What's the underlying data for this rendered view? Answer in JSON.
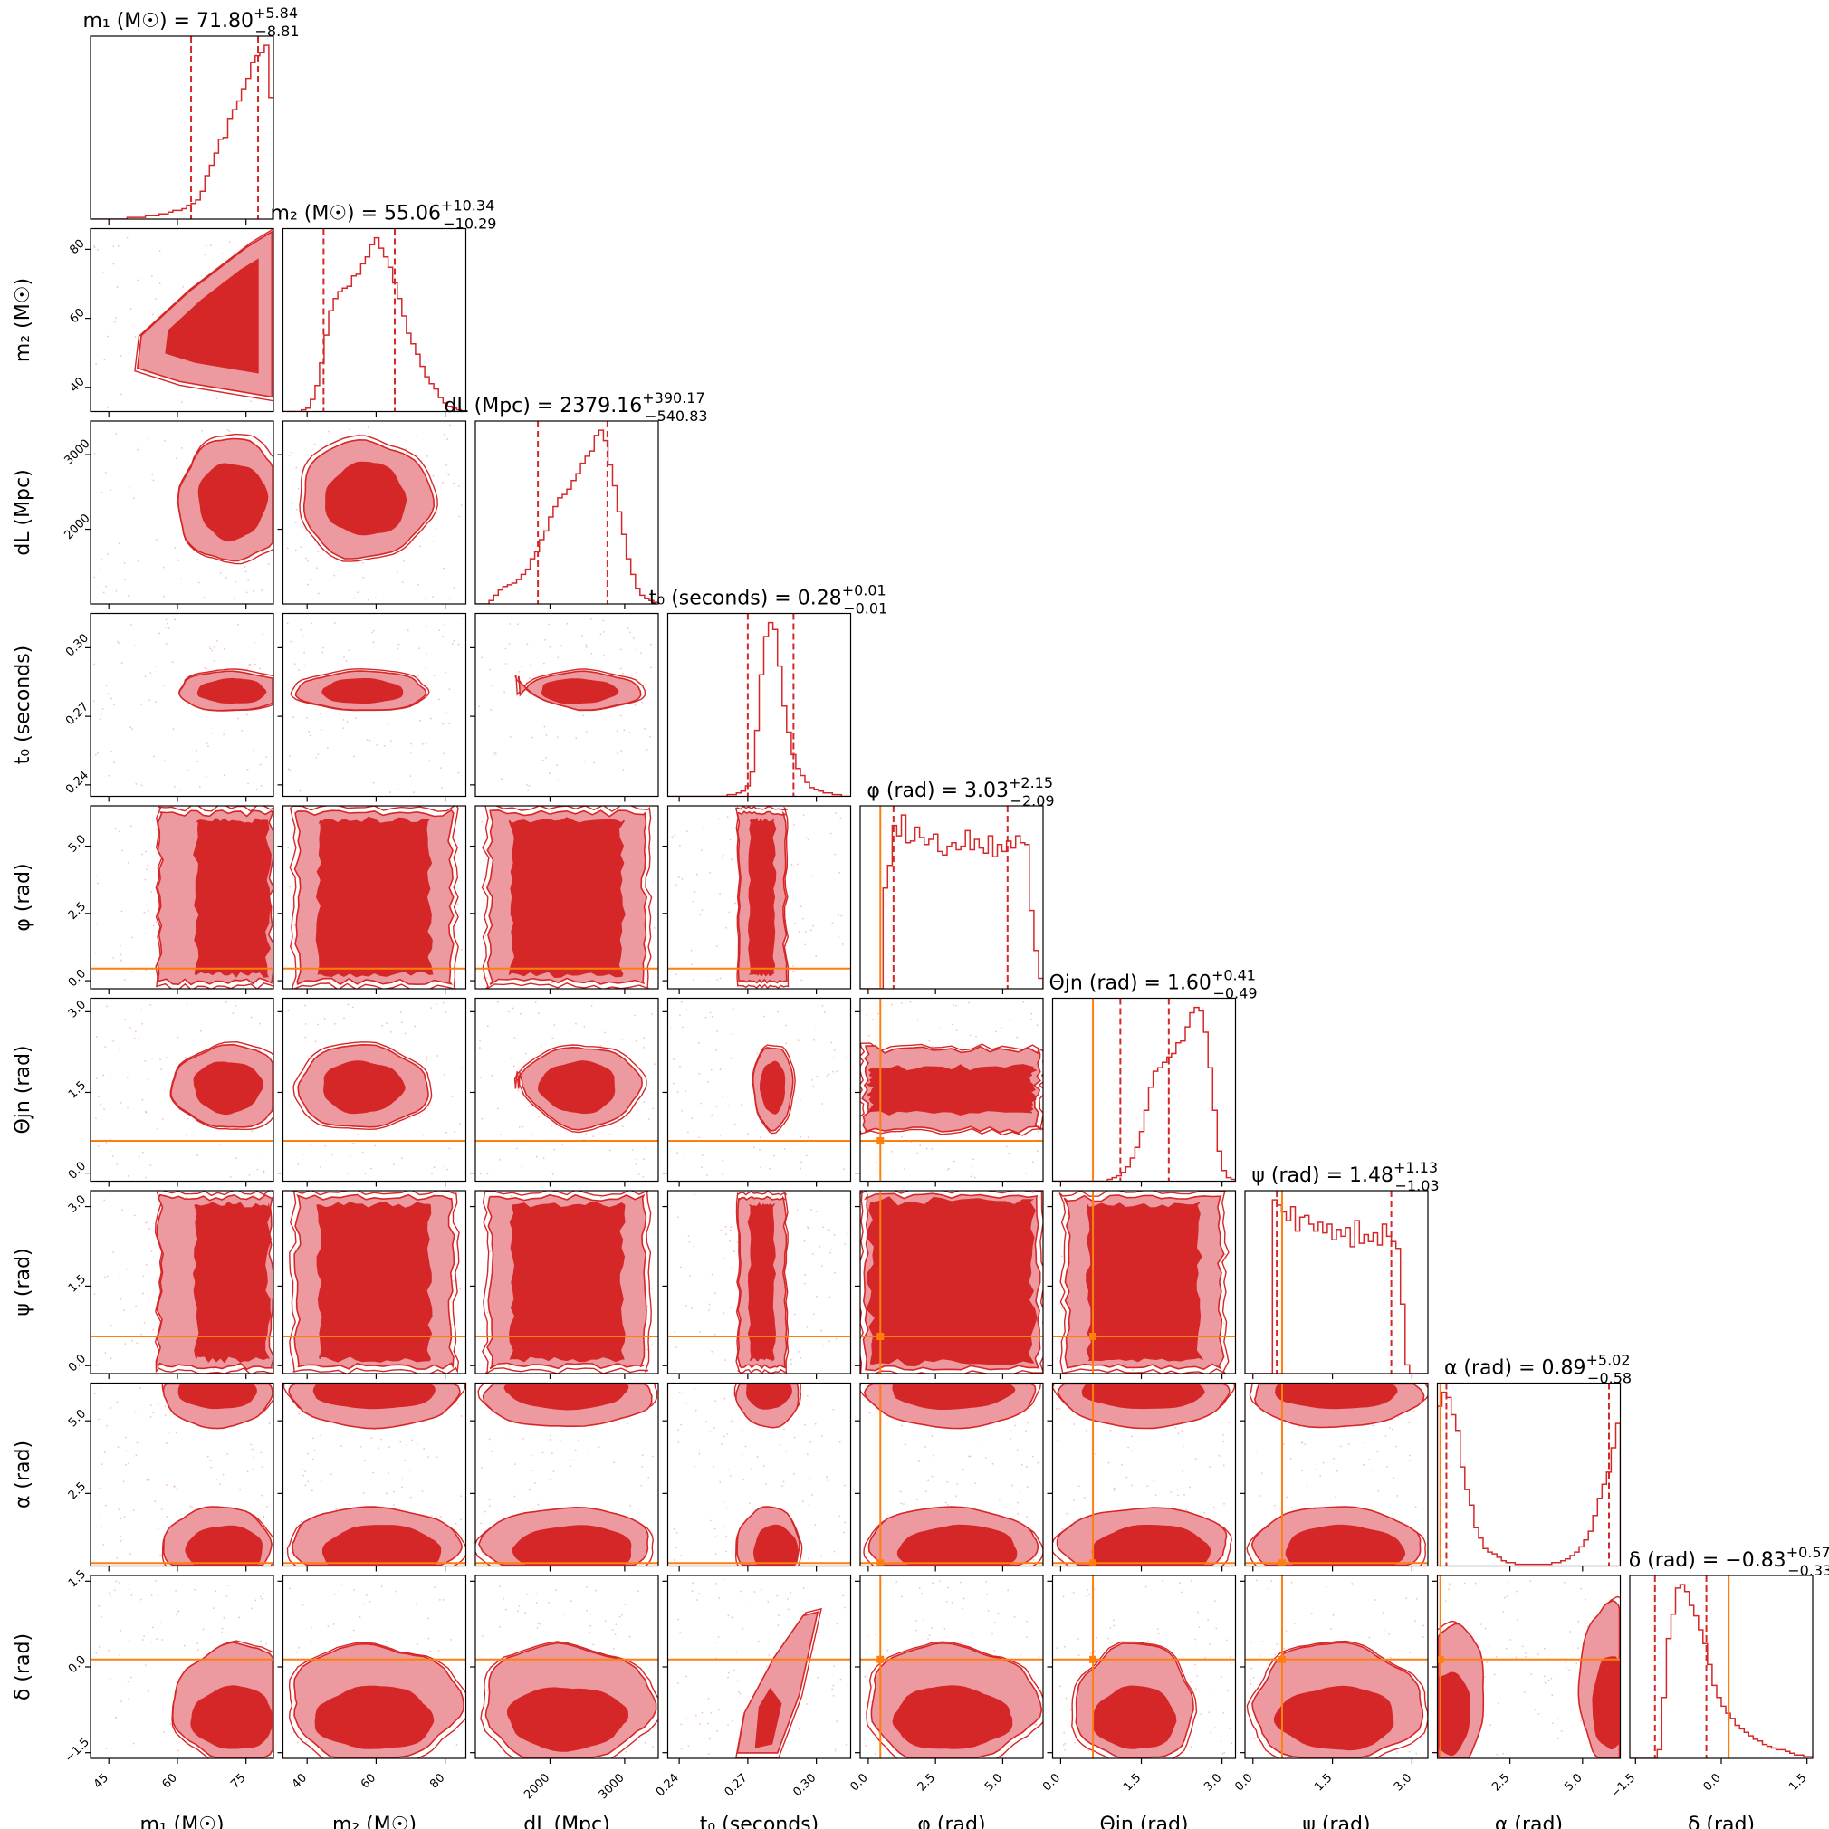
{
  "chart_data": {
    "type": "corner",
    "colors": {
      "posterior": "#d62728",
      "posterior_light": "#ec9aa0",
      "injection": "#ff7f0e"
    },
    "parameters": [
      {
        "key": "m1",
        "label": "m₁ (M☉)",
        "range": [
          41,
          81
        ],
        "ticks": [
          45,
          60,
          75
        ],
        "median": 71.8,
        "lo": 62.99,
        "hi": 77.64,
        "truth": null,
        "title": {
          "name": "m₁ (M☉) = 71.80",
          "plus": "+5.84",
          "minus": "−8.81"
        }
      },
      {
        "key": "m2",
        "label": "m₂ (M☉)",
        "range": [
          33,
          86
        ],
        "ticks": [
          40,
          60,
          80
        ],
        "median": 55.06,
        "lo": 44.77,
        "hi": 65.4,
        "truth": null,
        "title": {
          "name": "m₂ (M☉) = 55.06",
          "plus": "+10.34",
          "minus": "−10.29"
        }
      },
      {
        "key": "dL",
        "label": "dL (Mpc)",
        "range": [
          1000,
          3450
        ],
        "ticks": [
          2000,
          3000
        ],
        "median": 2379.16,
        "lo": 1838.33,
        "hi": 2769.33,
        "truth": null,
        "title": {
          "name": "dL (Mpc) = 2379.16",
          "plus": "+390.17",
          "minus": "−540.83"
        }
      },
      {
        "key": "t0",
        "label": "t₀ (seconds)",
        "range": [
          0.235,
          0.315
        ],
        "ticks": [
          0.24,
          0.27,
          0.3
        ],
        "median": 0.28,
        "lo": 0.27,
        "hi": 0.29,
        "truth": null,
        "title": {
          "name": "t₀ (seconds) = 0.28",
          "plus": "+0.01",
          "minus": "−0.01"
        }
      },
      {
        "key": "phi",
        "label": "φ (rad)",
        "range": [
          -0.3,
          6.5
        ],
        "ticks": [
          0.0,
          2.5,
          5.0
        ],
        "median": 3.03,
        "lo": 0.94,
        "hi": 5.18,
        "truth": 0.45,
        "title": {
          "name": "φ (rad) = 3.03",
          "plus": "+2.15",
          "minus": "−2.09"
        }
      },
      {
        "key": "theta",
        "label": "Θjn (rad)",
        "range": [
          -0.15,
          3.25
        ],
        "ticks": [
          0.0,
          1.5,
          3.0
        ],
        "median": 1.6,
        "lo": 1.11,
        "hi": 2.01,
        "truth": 0.6,
        "title": {
          "name": "Θjn (rad) = 1.60",
          "plus": "+0.41",
          "minus": "−0.49"
        }
      },
      {
        "key": "psi",
        "label": "ψ (rad)",
        "range": [
          -0.15,
          3.3
        ],
        "ticks": [
          0.0,
          1.5,
          3.0
        ],
        "median": 1.48,
        "lo": 0.45,
        "hi": 2.61,
        "truth": 0.55,
        "title": {
          "name": "ψ (rad) = 1.48",
          "plus": "+1.13",
          "minus": "−1.03"
        }
      },
      {
        "key": "alpha",
        "label": "α (rad)",
        "range": [
          0.0,
          6.3
        ],
        "ticks": [
          2.5,
          5.0
        ],
        "median": 0.89,
        "lo": 0.31,
        "hi": 5.91,
        "truth": 0.1,
        "title": {
          "name": "α (rad) = 0.89",
          "plus": "+5.02",
          "minus": "−0.58"
        }
      },
      {
        "key": "delta",
        "label": "δ (rad)",
        "range": [
          -1.6,
          1.6
        ],
        "ticks": [
          -1.5,
          0.0,
          1.5
        ],
        "median": -0.83,
        "lo": -1.16,
        "hi": -0.26,
        "truth": 0.13,
        "title": {
          "name": "δ (rad) = −0.83",
          "plus": "+0.57",
          "minus": "−0.33"
        }
      }
    ],
    "marginal_bins": 40,
    "marginals": [
      [
        0,
        0,
        0,
        0,
        0,
        0,
        0,
        0,
        1,
        1,
        1,
        1,
        2,
        2,
        2,
        3,
        3,
        4,
        5,
        5,
        6,
        8,
        9,
        11,
        16,
        25,
        31,
        38,
        46,
        47,
        58,
        63,
        68,
        75,
        81,
        90,
        94,
        96,
        100,
        70
      ],
      [
        0,
        0,
        0,
        0,
        1,
        2,
        7,
        15,
        28,
        44,
        58,
        65,
        69,
        71,
        72,
        78,
        79,
        85,
        89,
        96,
        100,
        94,
        89,
        83,
        74,
        65,
        55,
        45,
        39,
        33,
        26,
        20,
        16,
        13,
        8,
        5,
        3,
        2,
        1,
        0
      ],
      [
        0,
        0,
        0,
        2,
        5,
        8,
        10,
        11,
        12,
        14,
        17,
        20,
        26,
        30,
        37,
        42,
        50,
        56,
        61,
        63,
        66,
        71,
        75,
        81,
        85,
        88,
        97,
        100,
        94,
        80,
        68,
        53,
        40,
        26,
        17,
        9,
        5,
        3,
        2,
        1
      ],
      [
        0,
        0,
        0,
        0,
        0,
        0,
        0,
        0,
        0,
        0,
        0,
        0,
        0,
        1,
        1,
        2,
        3,
        6,
        14,
        38,
        70,
        92,
        100,
        96,
        75,
        52,
        37,
        24,
        16,
        12,
        8,
        5,
        4,
        3,
        2,
        2,
        1,
        1,
        0,
        0
      ],
      [
        0,
        0,
        0,
        0,
        0,
        58,
        71,
        94,
        88,
        100,
        84,
        85,
        93,
        87,
        83,
        86,
        89,
        79,
        77,
        82,
        84,
        80,
        82,
        91,
        80,
        86,
        81,
        78,
        88,
        76,
        83,
        79,
        85,
        81,
        88,
        84,
        83,
        45,
        22,
        6
      ],
      [
        0,
        0,
        0,
        0,
        0,
        0,
        0,
        0,
        0,
        0,
        0,
        0,
        1,
        2,
        3,
        5,
        8,
        13,
        19,
        28,
        40,
        53,
        62,
        64,
        67,
        70,
        72,
        78,
        79,
        87,
        95,
        98,
        96,
        84,
        64,
        40,
        17,
        6,
        2,
        1
      ],
      [
        0,
        0,
        0,
        0,
        0,
        0,
        100,
        97,
        93,
        88,
        96,
        82,
        90,
        91,
        86,
        82,
        87,
        81,
        86,
        77,
        83,
        79,
        84,
        73,
        88,
        75,
        80,
        76,
        81,
        74,
        86,
        79,
        76,
        72,
        40,
        5,
        0,
        0,
        0,
        0
      ],
      [
        92,
        100,
        97,
        87,
        78,
        57,
        44,
        35,
        22,
        16,
        10,
        8,
        7,
        5,
        3,
        2,
        2,
        1,
        1,
        1,
        1,
        1,
        1,
        1,
        1,
        2,
        2,
        3,
        4,
        6,
        8,
        11,
        15,
        20,
        29,
        39,
        47,
        54,
        68,
        82
      ],
      [
        0,
        0,
        0,
        0,
        0,
        0,
        5,
        35,
        69,
        83,
        98,
        100,
        96,
        88,
        82,
        74,
        66,
        54,
        42,
        35,
        30,
        26,
        23,
        19,
        17,
        15,
        13,
        11,
        10,
        8,
        7,
        6,
        5,
        5,
        4,
        3,
        2,
        2,
        1,
        1
      ]
    ],
    "joint": [
      {
        "i": 1,
        "j": 0,
        "shape": "triangle",
        "corr": 0.7,
        "trunc": "right"
      },
      {
        "i": 2,
        "j": 0,
        "shape": "blob",
        "mx": 72,
        "sx": 7,
        "my": 2380,
        "sy": 480,
        "trunc": "right"
      },
      {
        "i": 2,
        "j": 1,
        "shape": "blob",
        "mx": 57,
        "sx": 11,
        "my": 2400,
        "sy": 460
      },
      {
        "i": 3,
        "j": 0,
        "shape": "blob",
        "mx": 72,
        "sx": 7,
        "my": 0.281,
        "sy": 0.005,
        "trunc": "right"
      },
      {
        "i": 3,
        "j": 1,
        "shape": "blob",
        "mx": 56,
        "sx": 11,
        "my": 0.281,
        "sy": 0.005
      },
      {
        "i": 3,
        "j": 2,
        "shape": "wedge",
        "mx": 2380,
        "sx": 480,
        "my": 0.281,
        "sy": 0.005
      },
      {
        "i": 4,
        "j": 0,
        "shape": "band",
        "trunc": "right"
      },
      {
        "i": 4,
        "j": 1,
        "shape": "band"
      },
      {
        "i": 4,
        "j": 2,
        "shape": "band"
      },
      {
        "i": 4,
        "j": 3,
        "shape": "band"
      },
      {
        "i": 5,
        "j": 0,
        "shape": "blob",
        "mx": 71,
        "sx": 7,
        "my": 1.6,
        "sy": 0.45,
        "trunc": "right"
      },
      {
        "i": 5,
        "j": 1,
        "shape": "blob",
        "mx": 56,
        "sx": 11,
        "my": 1.6,
        "sy": 0.45
      },
      {
        "i": 5,
        "j": 2,
        "shape": "wedge",
        "mx": 2380,
        "sx": 480,
        "my": 1.6,
        "sy": 0.45
      },
      {
        "i": 5,
        "j": 3,
        "shape": "blob",
        "mx": 0.281,
        "sx": 0.005,
        "my": 1.6,
        "sy": 0.45
      },
      {
        "i": 5,
        "j": 4,
        "shape": "hband"
      },
      {
        "i": 6,
        "j": 0,
        "shape": "band",
        "trunc": "right"
      },
      {
        "i": 6,
        "j": 1,
        "shape": "band"
      },
      {
        "i": 6,
        "j": 2,
        "shape": "band"
      },
      {
        "i": 6,
        "j": 3,
        "shape": "band"
      },
      {
        "i": 6,
        "j": 4,
        "shape": "box"
      },
      {
        "i": 6,
        "j": 5,
        "shape": "band"
      },
      {
        "i": 7,
        "j": 0,
        "shape": "split",
        "trunc": "right"
      },
      {
        "i": 7,
        "j": 1,
        "shape": "split"
      },
      {
        "i": 7,
        "j": 2,
        "shape": "split"
      },
      {
        "i": 7,
        "j": 3,
        "shape": "split"
      },
      {
        "i": 7,
        "j": 4,
        "shape": "split"
      },
      {
        "i": 7,
        "j": 5,
        "shape": "split"
      },
      {
        "i": 7,
        "j": 6,
        "shape": "split"
      },
      {
        "i": 8,
        "j": 0,
        "shape": "lowblob",
        "trunc": "right"
      },
      {
        "i": 8,
        "j": 1,
        "shape": "lowblob"
      },
      {
        "i": 8,
        "j": 2,
        "shape": "lowblob"
      },
      {
        "i": 8,
        "j": 3,
        "shape": "diag"
      },
      {
        "i": 8,
        "j": 4,
        "shape": "lowblob"
      },
      {
        "i": 8,
        "j": 5,
        "shape": "lowblob"
      },
      {
        "i": 8,
        "j": 6,
        "shape": "lowblob"
      },
      {
        "i": 8,
        "j": 7,
        "shape": "vsplit"
      }
    ]
  }
}
